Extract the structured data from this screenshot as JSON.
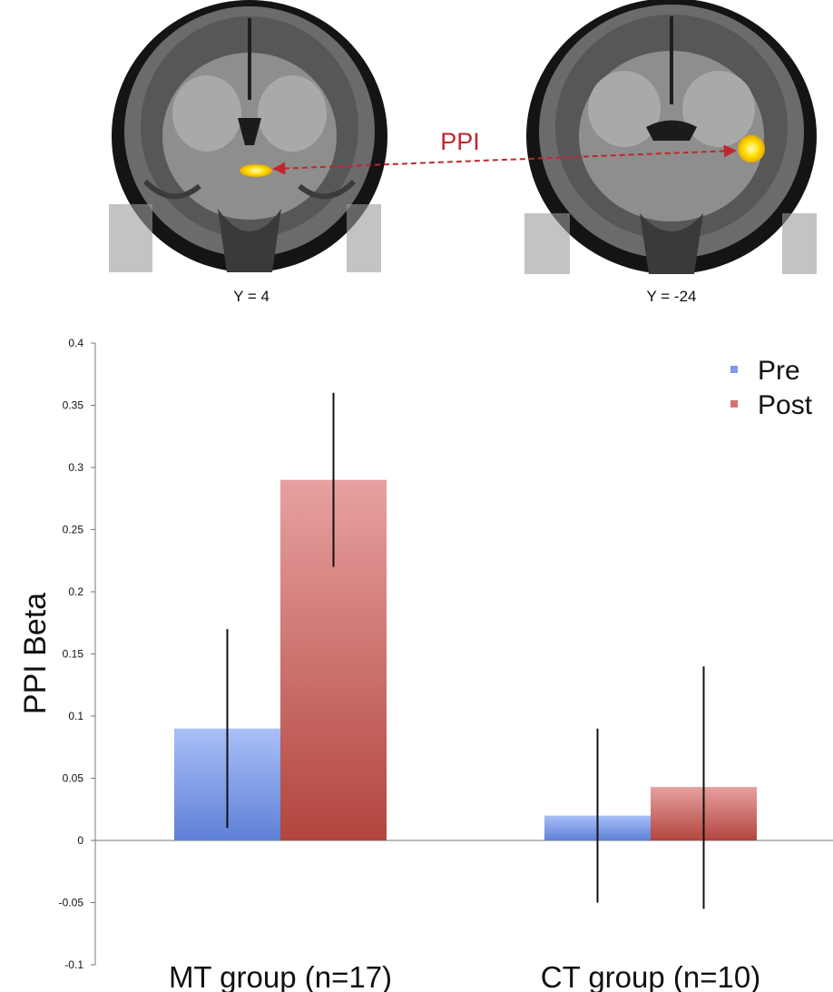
{
  "brain_panel": {
    "left_slice_caption": "Y = 4",
    "right_slice_caption": "Y = -24",
    "connection_label": "PPI",
    "connection_color": "#c0272d",
    "activation_color": "#ffd800"
  },
  "chart_data": {
    "type": "bar",
    "categories": [
      "MT group (n=17)",
      "CT group (n=10)"
    ],
    "series": [
      {
        "name": "Pre",
        "color": "#7f9be8",
        "values": [
          0.09,
          0.02
        ],
        "error_low": [
          0.01,
          -0.05
        ],
        "error_high": [
          0.17,
          0.09
        ]
      },
      {
        "name": "Post",
        "color": "#d67070",
        "values": [
          0.29,
          0.043
        ],
        "error_low": [
          0.22,
          -0.055
        ],
        "error_high": [
          0.36,
          0.14
        ]
      }
    ],
    "title": "",
    "xlabel": "",
    "ylabel": "PPI Beta",
    "ylim": [
      -0.1,
      0.4
    ],
    "yticks": [
      -0.1,
      -0.05,
      0,
      0.05,
      0.1,
      0.15,
      0.2,
      0.25,
      0.3,
      0.35,
      0.4
    ],
    "ytick_labels": [
      "-0.1",
      "-0.05",
      "0",
      "0.05",
      "0.1",
      "0.15",
      "0.2",
      "0.25",
      "0.3",
      "0.35",
      "0.4"
    ],
    "grid": false,
    "legend_position": "top-right"
  }
}
